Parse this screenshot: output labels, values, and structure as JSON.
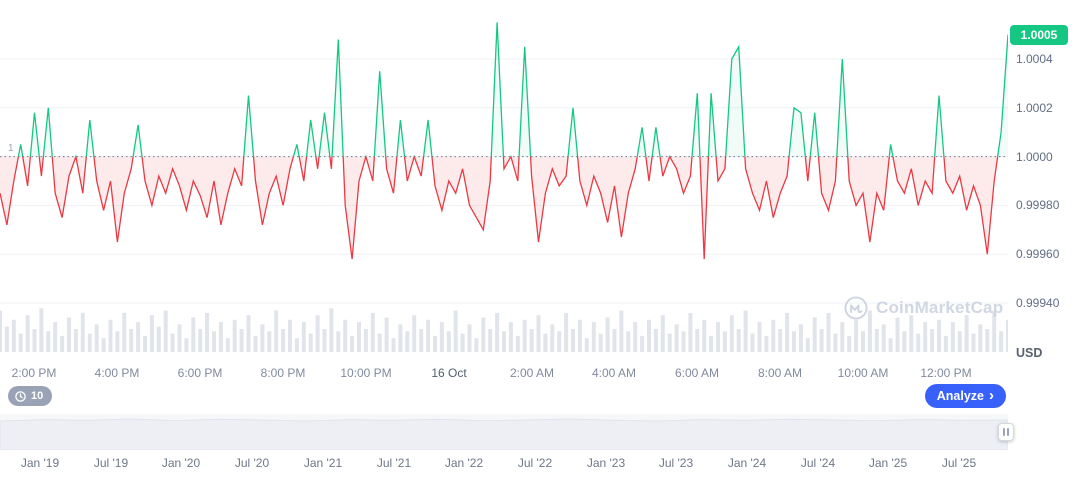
{
  "price_axis": {
    "current_badge": "1.0005",
    "labels": [
      "1.0004",
      "1.0002",
      "1.0000",
      "0.99980",
      "0.99960",
      "0.99940"
    ],
    "unit": "USD",
    "baseline_marker": "1"
  },
  "time_axis": {
    "labels": [
      "2:00 PM",
      "4:00 PM",
      "6:00 PM",
      "8:00 PM",
      "10:00 PM",
      "16 Oct",
      "2:00 AM",
      "4:00 AM",
      "6:00 AM",
      "8:00 AM",
      "10:00 AM",
      "12:00 PM"
    ]
  },
  "controls": {
    "history_badge": "10",
    "analyze_label": "Analyze",
    "analyze_chevron": "›"
  },
  "watermark": {
    "text": "CoinMarketCap"
  },
  "navigator": {
    "labels": [
      "Jan '19",
      "Jul '19",
      "Jan '20",
      "Jul '20",
      "Jan '21",
      "Jul '21",
      "Jan '22",
      "Jul '22",
      "Jan '23",
      "Jul '23",
      "Jan '24",
      "Jul '24",
      "Jan '25",
      "Jul '25"
    ],
    "spark": [
      0.88,
      0.92,
      0.9,
      0.94,
      0.89,
      0.93,
      0.91,
      0.88,
      0.92,
      0.9,
      0.93,
      0.89,
      0.91,
      0.94,
      0.9,
      0.88,
      0.92,
      0.9,
      0.93,
      0.91,
      0.89,
      0.92,
      0.9,
      0.91
    ]
  },
  "chart_data": {
    "type": "line",
    "title": "Stablecoin price vs USD, intraday (15–16 Oct)",
    "unit": "USD",
    "baseline": 1.0,
    "current_price": 1.0005,
    "ylim": [
      0.99935,
      1.0006
    ],
    "y_ticks": [
      1.0004,
      1.0002,
      1.0,
      0.9998,
      0.9996,
      0.9994
    ],
    "x_tick_labels": [
      "2:00 PM",
      "4:00 PM",
      "6:00 PM",
      "8:00 PM",
      "10:00 PM",
      "16 Oct",
      "2:00 AM",
      "4:00 AM",
      "6:00 AM",
      "8:00 AM",
      "10:00 AM",
      "12:00 PM"
    ],
    "x_tick_indices": [
      5,
      17,
      29,
      41,
      53,
      65,
      77,
      89,
      101,
      113,
      125,
      137
    ],
    "interval_minutes": 10,
    "legend": "none",
    "grid": true,
    "colors": {
      "up": "#16c784",
      "down": "#ea3943",
      "area_up": "rgba(22,199,132,0.06)",
      "area_down": "rgba(234,57,67,0.10)",
      "badge": "#16c784",
      "accent_blue": "#3861fb"
    },
    "values": [
      0.99985,
      0.99972,
      0.9999,
      1.00005,
      0.99988,
      1.00018,
      0.99992,
      1.0002,
      0.99985,
      0.99975,
      0.99992,
      1.0,
      0.99985,
      1.00015,
      0.9999,
      0.99978,
      0.9999,
      0.99965,
      0.99985,
      0.99995,
      1.00013,
      0.9999,
      0.9998,
      0.99992,
      0.99985,
      0.99995,
      0.99988,
      0.99978,
      0.9999,
      0.99984,
      0.99975,
      0.9999,
      0.99972,
      0.99985,
      0.99995,
      0.99988,
      1.00025,
      0.9999,
      0.99972,
      0.99985,
      0.99992,
      0.9998,
      0.99995,
      1.00005,
      0.9999,
      1.00015,
      0.99995,
      1.00018,
      0.99995,
      1.00048,
      0.9998,
      0.99958,
      0.9999,
      1.0,
      0.9999,
      1.00035,
      0.99995,
      0.99985,
      1.00015,
      0.9999,
      1.0,
      0.99992,
      1.00015,
      0.99988,
      0.99978,
      0.9999,
      0.99985,
      0.99995,
      0.9998,
      0.99975,
      0.9997,
      0.9999,
      1.00055,
      0.99995,
      1.0,
      0.9999,
      1.00045,
      0.99992,
      0.99965,
      0.99985,
      0.99995,
      0.99988,
      0.99992,
      1.0002,
      0.9999,
      0.9998,
      0.99992,
      0.99985,
      0.99973,
      0.99988,
      0.99967,
      0.99985,
      0.99995,
      1.00012,
      0.9999,
      1.00012,
      0.99992,
      1.0,
      0.99995,
      0.99985,
      0.99992,
      1.00026,
      0.99958,
      1.00026,
      0.9999,
      0.99995,
      1.0004,
      1.00045,
      0.99995,
      0.99985,
      0.99978,
      0.9999,
      0.99975,
      0.99985,
      0.99992,
      1.0002,
      1.00018,
      0.9999,
      1.00018,
      0.99985,
      0.99978,
      0.9999,
      1.0004,
      0.9999,
      0.9998,
      0.99985,
      0.99965,
      0.99985,
      0.99978,
      1.00005,
      0.9999,
      0.99985,
      0.99995,
      0.9998,
      0.9999,
      0.99985,
      1.00025,
      0.9999,
      0.99985,
      0.99992,
      0.99978,
      0.99988,
      0.9998,
      0.9996,
      0.9999,
      1.0001,
      1.0005
    ],
    "volumes": [
      0.9,
      0.55,
      0.7,
      0.4,
      0.8,
      0.5,
      0.95,
      0.45,
      0.65,
      0.35,
      0.75,
      0.5,
      0.85,
      0.4,
      0.6,
      0.3,
      0.7,
      0.45,
      0.85,
      0.5,
      0.65,
      0.35,
      0.8,
      0.55,
      0.9,
      0.4,
      0.6,
      0.3,
      0.75,
      0.5,
      0.85,
      0.45,
      0.65,
      0.3,
      0.7,
      0.5,
      0.8,
      0.35,
      0.6,
      0.45,
      0.9,
      0.5,
      0.7,
      0.3,
      0.65,
      0.4,
      0.8,
      0.5,
      0.95,
      0.45,
      0.7,
      0.35,
      0.65,
      0.5,
      0.85,
      0.4,
      0.75,
      0.3,
      0.6,
      0.45,
      0.8,
      0.5,
      0.7,
      0.35,
      0.65,
      0.45,
      0.9,
      0.4,
      0.6,
      0.3,
      0.75,
      0.5,
      0.85,
      0.45,
      0.65,
      0.35,
      0.7,
      0.5,
      0.8,
      0.4,
      0.6,
      0.45,
      0.85,
      0.5,
      0.7,
      0.3,
      0.65,
      0.4,
      0.75,
      0.5,
      0.9,
      0.45,
      0.65,
      0.35,
      0.7,
      0.5,
      0.8,
      0.4,
      0.6,
      0.45,
      0.85,
      0.5,
      0.7,
      0.35,
      0.65,
      0.45,
      0.8,
      0.5,
      0.9,
      0.4,
      0.65,
      0.35,
      0.7,
      0.5,
      0.85,
      0.45,
      0.6,
      0.3,
      0.75,
      0.5,
      0.85,
      0.4,
      0.65,
      0.35,
      0.7,
      0.45,
      0.9,
      0.5,
      0.6,
      0.3,
      0.75,
      0.45,
      0.8,
      0.4,
      0.65,
      0.5,
      0.7,
      0.35,
      0.65,
      0.45,
      0.8,
      0.4,
      0.6,
      0.5,
      0.9,
      0.45,
      0.7
    ]
  }
}
